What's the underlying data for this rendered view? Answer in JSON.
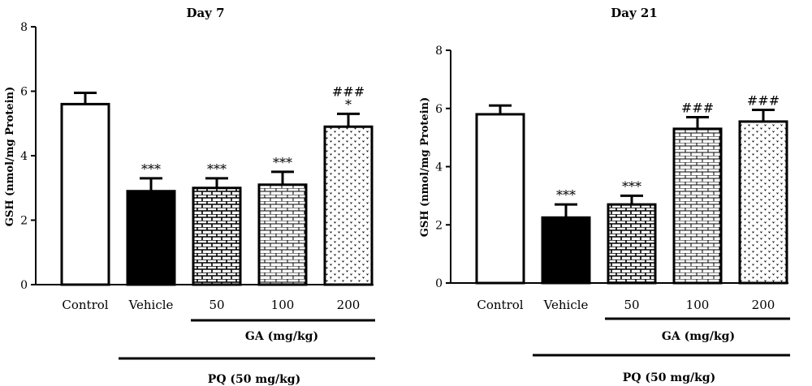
{
  "patterns": {
    "Control": "open",
    "Vehicle": "solid",
    "50": "brick-dense",
    "100": "brick-light",
    "200": "dotted"
  },
  "colors": {
    "ink": "#000000",
    "fill": "#ffffff"
  },
  "chart_data": [
    {
      "type": "bar",
      "title": "Day 7",
      "ylabel": "GSH (nmol/mg Protein)",
      "ylim": [
        0,
        8
      ],
      "yticks": [
        "0",
        "2",
        "4",
        "6",
        "8"
      ],
      "categories": [
        "Control",
        "Vehicle",
        "50",
        "100",
        "200"
      ],
      "values": [
        5.6,
        2.9,
        3.0,
        3.1,
        4.9
      ],
      "errors": [
        0.35,
        0.4,
        0.3,
        0.4,
        0.4
      ],
      "annotations": [
        {
          "index": 1,
          "lines": [
            "***"
          ]
        },
        {
          "index": 2,
          "lines": [
            "***"
          ]
        },
        {
          "index": 3,
          "lines": [
            "***"
          ]
        },
        {
          "index": 4,
          "lines": [
            "###",
            "*"
          ]
        }
      ],
      "group_labels": {
        "ga": "GA (mg/kg)",
        "pq": "PQ (50 mg/kg)"
      },
      "grid": false
    },
    {
      "type": "bar",
      "title": "Day 21",
      "ylabel": "GSH (nmol/mg Protein)",
      "ylim": [
        0,
        8
      ],
      "yticks": [
        "0",
        "2",
        "4",
        "6",
        "8"
      ],
      "categories": [
        "Control",
        "Vehicle",
        "50",
        "100",
        "200"
      ],
      "values": [
        5.8,
        2.25,
        2.7,
        5.3,
        5.55
      ],
      "errors": [
        0.3,
        0.45,
        0.3,
        0.4,
        0.4
      ],
      "annotations": [
        {
          "index": 1,
          "lines": [
            "***"
          ]
        },
        {
          "index": 2,
          "lines": [
            "***"
          ]
        },
        {
          "index": 3,
          "lines": [
            "###"
          ]
        },
        {
          "index": 4,
          "lines": [
            "###"
          ]
        }
      ],
      "group_labels": {
        "ga": "GA (mg/kg)",
        "pq": "PQ (50 mg/kg)"
      },
      "grid": false
    }
  ]
}
